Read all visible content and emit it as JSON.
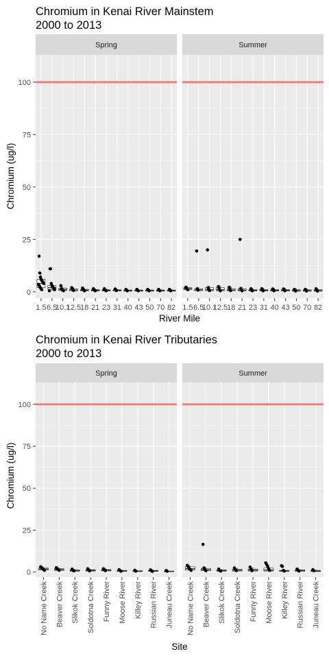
{
  "chart_data": [
    {
      "type": "boxplot",
      "title": "Chromium in Kenai River Mainstem\n 2000 to 2013",
      "xlabel": "River Mile",
      "ylabel": "Chromium (ug/l)",
      "ylim": [
        -3,
        113
      ],
      "yticks": [
        0,
        25,
        50,
        75,
        100
      ],
      "reference_line": {
        "value": 100,
        "color": "#F8766D"
      },
      "grid": true,
      "categories": [
        "1.5",
        "6.5",
        "10.1",
        "12.5",
        "18",
        "21",
        "23",
        "31",
        "40",
        "43",
        "50",
        "70",
        "82"
      ],
      "panels": [
        {
          "name": "Spring",
          "boxes": [
            {
              "q1": 2,
              "median": 4,
              "q3": 6,
              "wl": 0.5,
              "wh": 9
            },
            {
              "q1": 1.2,
              "median": 2,
              "q3": 3,
              "wl": 0.4,
              "wh": 4.5
            },
            {
              "q1": 0.6,
              "median": 1.1,
              "q3": 1.8,
              "wl": 0.3,
              "wh": 2.8
            },
            {
              "q1": 0.5,
              "median": 0.9,
              "q3": 1.4,
              "wl": 0.2,
              "wh": 2.2
            },
            {
              "q1": 0.5,
              "median": 0.8,
              "q3": 1.2,
              "wl": 0.2,
              "wh": 1.8
            },
            {
              "q1": 0.4,
              "median": 0.7,
              "q3": 1.1,
              "wl": 0.2,
              "wh": 1.6
            },
            {
              "q1": 0.4,
              "median": 0.7,
              "q3": 1.1,
              "wl": 0.2,
              "wh": 1.6
            },
            {
              "q1": 0.4,
              "median": 0.7,
              "q3": 1.0,
              "wl": 0.2,
              "wh": 1.5
            },
            {
              "q1": 0.3,
              "median": 0.6,
              "q3": 0.9,
              "wl": 0.1,
              "wh": 1.3
            },
            {
              "q1": 0.3,
              "median": 0.6,
              "q3": 0.9,
              "wl": 0.1,
              "wh": 1.3
            },
            {
              "q1": 0.3,
              "median": 0.6,
              "q3": 0.9,
              "wl": 0.1,
              "wh": 1.3
            },
            {
              "q1": 0.3,
              "median": 0.6,
              "q3": 0.9,
              "wl": 0.1,
              "wh": 1.3
            },
            {
              "q1": 0.3,
              "median": 0.6,
              "q3": 0.9,
              "wl": 0.1,
              "wh": 1.3
            }
          ],
          "points": [
            [
              0,
              17
            ],
            [
              0,
              9
            ],
            [
              0,
              7
            ],
            [
              0,
              6
            ],
            [
              0,
              5.5
            ],
            [
              0,
              5
            ],
            [
              0,
              4.5
            ],
            [
              0,
              4
            ],
            [
              0,
              3.5
            ],
            [
              0,
              3
            ],
            [
              0,
              2.5
            ],
            [
              0,
              2
            ],
            [
              0,
              1.5
            ],
            [
              0,
              1
            ],
            [
              1,
              11
            ],
            [
              1,
              11
            ],
            [
              1,
              4
            ],
            [
              1,
              3
            ],
            [
              1,
              2.5
            ],
            [
              1,
              2
            ],
            [
              1,
              1.5
            ],
            [
              1,
              1
            ],
            [
              1,
              0.5
            ],
            [
              2,
              3
            ],
            [
              2,
              1.5
            ],
            [
              2,
              1
            ],
            [
              2,
              0.8
            ],
            [
              2,
              0.5
            ],
            [
              3,
              2
            ],
            [
              3,
              1.5
            ],
            [
              3,
              1
            ],
            [
              3,
              0.6
            ],
            [
              4,
              1.8
            ],
            [
              4,
              1.2
            ],
            [
              4,
              0.8
            ],
            [
              4,
              0.5
            ],
            [
              5,
              1.5
            ],
            [
              5,
              1
            ],
            [
              5,
              0.7
            ],
            [
              5,
              0.5
            ],
            [
              6,
              1.5
            ],
            [
              6,
              1
            ],
            [
              6,
              0.7
            ],
            [
              6,
              0.5
            ],
            [
              7,
              1.4
            ],
            [
              7,
              0.9
            ],
            [
              7,
              0.6
            ],
            [
              8,
              1.2
            ],
            [
              8,
              0.8
            ],
            [
              8,
              0.5
            ],
            [
              9,
              1.2
            ],
            [
              9,
              0.8
            ],
            [
              9,
              0.5
            ],
            [
              10,
              1.2
            ],
            [
              10,
              0.8
            ],
            [
              10,
              0.5
            ],
            [
              11,
              1.2
            ],
            [
              11,
              0.8
            ],
            [
              11,
              0.5
            ],
            [
              12,
              1.2
            ],
            [
              12,
              0.8
            ],
            [
              12,
              0.5
            ]
          ]
        },
        {
          "name": "Summer",
          "boxes": [
            {
              "q1": 1.0,
              "median": 1.5,
              "q3": 2.0,
              "wl": 0.5,
              "wh": 2.5
            },
            {
              "q1": 0.5,
              "median": 1.0,
              "q3": 1.5,
              "wl": 0.2,
              "wh": 2.2
            },
            {
              "q1": 0.5,
              "median": 1.0,
              "q3": 2.0,
              "wl": 0.2,
              "wh": 3.0
            },
            {
              "q1": 0.5,
              "median": 1.0,
              "q3": 2.0,
              "wl": 0.2,
              "wh": 3.0
            },
            {
              "q1": 0.5,
              "median": 0.9,
              "q3": 1.5,
              "wl": 0.2,
              "wh": 2.5
            },
            {
              "q1": 0.5,
              "median": 0.8,
              "q3": 1.5,
              "wl": 0.2,
              "wh": 2.5
            },
            {
              "q1": 0.4,
              "median": 0.7,
              "q3": 1.1,
              "wl": 0.2,
              "wh": 1.8
            },
            {
              "q1": 0.4,
              "median": 0.7,
              "q3": 1.1,
              "wl": 0.2,
              "wh": 1.8
            },
            {
              "q1": 0.4,
              "median": 0.7,
              "q3": 1.1,
              "wl": 0.2,
              "wh": 1.8
            },
            {
              "q1": 0.4,
              "median": 0.7,
              "q3": 1.1,
              "wl": 0.2,
              "wh": 1.8
            },
            {
              "q1": 0.3,
              "median": 0.6,
              "q3": 1.0,
              "wl": 0.1,
              "wh": 1.6
            },
            {
              "q1": 0.3,
              "median": 0.6,
              "q3": 1.0,
              "wl": 0.1,
              "wh": 1.6
            },
            {
              "q1": 0.3,
              "median": 0.6,
              "q3": 1.0,
              "wl": 0.1,
              "wh": 1.6
            }
          ],
          "points": [
            [
              0,
              2.2
            ],
            [
              0,
              1.8
            ],
            [
              0,
              1.4
            ],
            [
              0,
              1
            ],
            [
              1,
              19.5
            ],
            [
              1,
              1.5
            ],
            [
              1,
              0.8
            ],
            [
              2,
              20
            ],
            [
              2,
              2
            ],
            [
              2,
              1.2
            ],
            [
              2,
              0.6
            ],
            [
              3,
              2.5
            ],
            [
              3,
              1.5
            ],
            [
              3,
              1
            ],
            [
              3,
              0.5
            ],
            [
              4,
              2.2
            ],
            [
              4,
              1.2
            ],
            [
              4,
              0.6
            ],
            [
              5,
              25
            ],
            [
              5,
              1.6
            ],
            [
              5,
              1
            ],
            [
              5,
              0.5
            ],
            [
              6,
              1.5
            ],
            [
              6,
              0.9
            ],
            [
              6,
              0.5
            ],
            [
              7,
              1.5
            ],
            [
              7,
              0.9
            ],
            [
              7,
              0.5
            ],
            [
              8,
              1.4
            ],
            [
              8,
              0.8
            ],
            [
              8,
              0.5
            ],
            [
              9,
              1.4
            ],
            [
              9,
              0.8
            ],
            [
              9,
              0.5
            ],
            [
              10,
              1.2
            ],
            [
              10,
              0.7
            ],
            [
              10,
              0.4
            ],
            [
              11,
              1.2
            ],
            [
              11,
              0.7
            ],
            [
              11,
              0.4
            ],
            [
              12,
              1.5
            ],
            [
              12,
              0.8
            ],
            [
              12,
              0.4
            ]
          ]
        }
      ]
    },
    {
      "type": "boxplot",
      "title": "Chromium in Kenai River Tributaries\n 2000 to 2013",
      "xlabel": "Site",
      "ylabel": "Chromium (ug/l)",
      "ylim": [
        -3,
        113
      ],
      "yticks": [
        0,
        25,
        50,
        75,
        100
      ],
      "reference_line": {
        "value": 100,
        "color": "#F8766D"
      },
      "grid": true,
      "categories": [
        "No Name Creek",
        "Beaver Creek",
        "Slikok Creek",
        "Soldotna Creek",
        "Funny River",
        "Moose River",
        "Killey River",
        "Russian River",
        "Juneau Creek"
      ],
      "panels": [
        {
          "name": "Spring",
          "boxes": [
            {
              "q1": 1.2,
              "median": 1.8,
              "q3": 2.4,
              "wl": 0.5,
              "wh": 3.2
            },
            {
              "q1": 1.0,
              "median": 1.5,
              "q3": 2.0,
              "wl": 0.5,
              "wh": 2.6
            },
            {
              "q1": 0.5,
              "median": 0.9,
              "q3": 1.3,
              "wl": 0.2,
              "wh": 1.8
            },
            {
              "q1": 0.6,
              "median": 1.0,
              "q3": 1.4,
              "wl": 0.2,
              "wh": 2.0
            },
            {
              "q1": 0.7,
              "median": 1.1,
              "q3": 1.5,
              "wl": 0.3,
              "wh": 2.0
            },
            {
              "q1": 0.4,
              "median": 0.7,
              "q3": 1.0,
              "wl": 0.2,
              "wh": 1.4
            },
            {
              "q1": 0.3,
              "median": 0.5,
              "q3": 0.8,
              "wl": 0.1,
              "wh": 1.1
            },
            {
              "q1": 0.4,
              "median": 0.7,
              "q3": 1.0,
              "wl": 0.2,
              "wh": 1.3
            },
            {
              "q1": 0.2,
              "median": 0.4,
              "q3": 0.6,
              "wl": 0.1,
              "wh": 0.9
            }
          ],
          "points": [
            [
              0,
              3.2
            ],
            [
              0,
              2.6
            ],
            [
              0,
              2
            ],
            [
              0,
              1.5
            ],
            [
              0,
              1
            ],
            [
              1,
              2.6
            ],
            [
              1,
              2
            ],
            [
              1,
              1.5
            ],
            [
              1,
              1
            ],
            [
              2,
              1.8
            ],
            [
              2,
              1.2
            ],
            [
              2,
              0.7
            ],
            [
              3,
              2
            ],
            [
              3,
              1.3
            ],
            [
              3,
              0.7
            ],
            [
              4,
              2
            ],
            [
              4,
              1.4
            ],
            [
              4,
              0.9
            ],
            [
              5,
              1.4
            ],
            [
              5,
              0.9
            ],
            [
              5,
              0.5
            ],
            [
              6,
              1.1
            ],
            [
              6,
              0.6
            ],
            [
              7,
              1.3
            ],
            [
              7,
              0.8
            ],
            [
              7,
              0.4
            ],
            [
              8,
              0.9
            ],
            [
              8,
              0.5
            ]
          ]
        },
        {
          "name": "Summer",
          "boxes": [
            {
              "q1": 1.2,
              "median": 2.0,
              "q3": 3.2,
              "wl": 0.5,
              "wh": 4.0
            },
            {
              "q1": 0.8,
              "median": 1.4,
              "q3": 2.2,
              "wl": 0.3,
              "wh": 3.0
            },
            {
              "q1": 0.5,
              "median": 0.9,
              "q3": 1.3,
              "wl": 0.2,
              "wh": 1.8
            },
            {
              "q1": 0.6,
              "median": 1.1,
              "q3": 1.7,
              "wl": 0.2,
              "wh": 2.5
            },
            {
              "q1": 0.6,
              "median": 1.2,
              "q3": 1.8,
              "wl": 0.2,
              "wh": 3.0
            },
            {
              "q1": 0.6,
              "median": 1.2,
              "q3": 2.4,
              "wl": 0.2,
              "wh": 3.5
            },
            {
              "q1": 0.4,
              "median": 0.7,
              "q3": 1.0,
              "wl": 0.2,
              "wh": 1.4
            },
            {
              "q1": 0.5,
              "median": 0.9,
              "q3": 1.3,
              "wl": 0.2,
              "wh": 1.8
            },
            {
              "q1": 0.3,
              "median": 0.6,
              "q3": 1.0,
              "wl": 0.1,
              "wh": 1.4
            }
          ],
          "points": [
            [
              0,
              4
            ],
            [
              0,
              3.2
            ],
            [
              0,
              2.2
            ],
            [
              0,
              1.5
            ],
            [
              0,
              1
            ],
            [
              1,
              16.5
            ],
            [
              1,
              2.5
            ],
            [
              1,
              1.5
            ],
            [
              1,
              0.8
            ],
            [
              2,
              1.8
            ],
            [
              2,
              1
            ],
            [
              2,
              0.6
            ],
            [
              3,
              2.5
            ],
            [
              3,
              1.6
            ],
            [
              3,
              0.9
            ],
            [
              4,
              3
            ],
            [
              4,
              1.8
            ],
            [
              4,
              0.9
            ],
            [
              5,
              5.5
            ],
            [
              5,
              4.5
            ],
            [
              5,
              3.5
            ],
            [
              5,
              2
            ],
            [
              5,
              1
            ],
            [
              6,
              3.8
            ],
            [
              6,
              3.4
            ],
            [
              6,
              1
            ],
            [
              6,
              0.6
            ],
            [
              7,
              1.8
            ],
            [
              7,
              1
            ],
            [
              7,
              0.6
            ],
            [
              8,
              1.4
            ],
            [
              8,
              0.8
            ]
          ]
        }
      ]
    }
  ]
}
